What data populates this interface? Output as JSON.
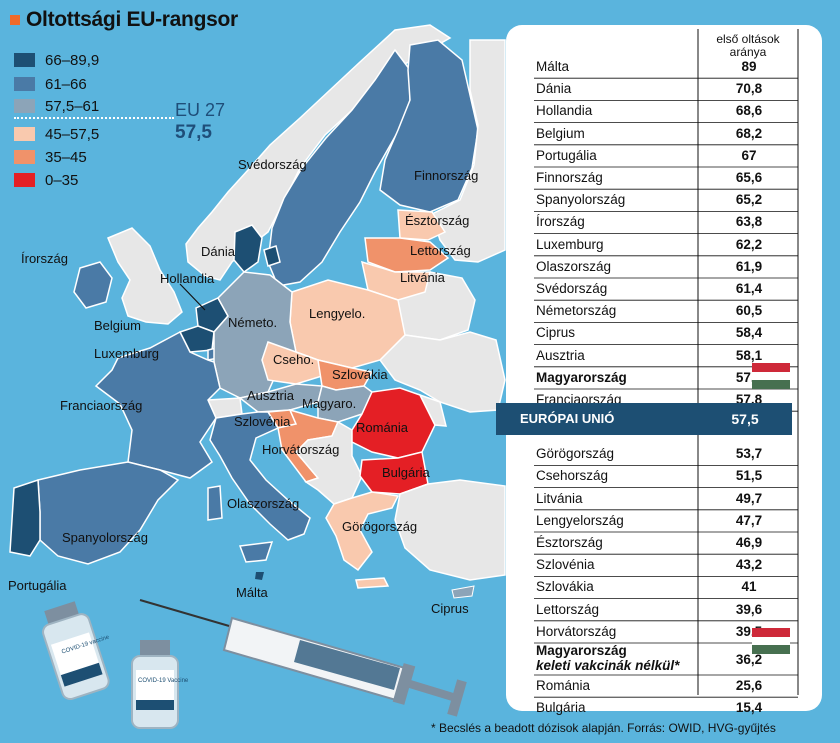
{
  "title": "Oltottsági EU-rangsor",
  "legend": [
    {
      "label": "66–89,9",
      "color": "#1d4f73"
    },
    {
      "label": "61–66",
      "color": "#4a7aa6"
    },
    {
      "label": "57,5–61",
      "color": "#8ca4b8"
    },
    {
      "label": "45–57,5",
      "color": "#f9c9ae"
    },
    {
      "label": "35–45",
      "color": "#f0926a"
    },
    {
      "label": "0–35",
      "color": "#e41f25"
    }
  ],
  "eu_average": {
    "label": "EU 27",
    "value": "57,5"
  },
  "map_labels": {
    "svedorszag": "Svédország",
    "finnorszag": "Finnország",
    "esztorszag": "Észtország",
    "lettorszag": "Lettország",
    "litvania": "Litvánia",
    "irorszag": "Írország",
    "dania": "Dánia",
    "hollandia": "Hollandia",
    "belgium": "Belgium",
    "luxemburg": "Luxemburg",
    "nemeto": "Németo.",
    "lengyelo": "Lengyelo.",
    "cseho": "Cseho.",
    "szlovakia": "Szlovákia",
    "ausztria": "Ausztria",
    "magyaro": "Magyaro.",
    "franciaorszag": "Franciaország",
    "szlovenia": "Szlovénia",
    "romania": "Románia",
    "horvatorszag": "Horvátország",
    "bulgaria": "Bulgária",
    "olaszorszag": "Olaszország",
    "spanyolorszag": "Spanyolország",
    "gorogorszag": "Görögország",
    "portugalia": "Portugália",
    "malta": "Málta",
    "ciprus": "Ciprus"
  },
  "table": {
    "column_header_line1": "első oltások",
    "column_header_line2": "aránya",
    "eu_row": {
      "name": "EURÓPAI UNIÓ",
      "value": "57,5"
    },
    "hu_note_line1": "Magyarország",
    "hu_note_line2": "keleti vakcinák nélkül*",
    "hu_note_value": "36,2"
  },
  "chart_data": {
    "type": "table",
    "title": "Oltottsági EU-rangsor",
    "value_label": "első oltások aránya",
    "rows": [
      {
        "name": "Málta",
        "value": "89"
      },
      {
        "name": "Dánia",
        "value": "70,8"
      },
      {
        "name": "Hollandia",
        "value": "68,6"
      },
      {
        "name": "Belgium",
        "value": "68,2"
      },
      {
        "name": "Portugália",
        "value": "67"
      },
      {
        "name": "Finnország",
        "value": "65,6"
      },
      {
        "name": "Spanyolország",
        "value": "65,2"
      },
      {
        "name": "Írország",
        "value": "63,8"
      },
      {
        "name": "Luxemburg",
        "value": "62,2"
      },
      {
        "name": "Olaszország",
        "value": "61,9"
      },
      {
        "name": "Svédország",
        "value": "61,4"
      },
      {
        "name": "Németország",
        "value": "60,5"
      },
      {
        "name": "Ciprus",
        "value": "58,4"
      },
      {
        "name": "Ausztria",
        "value": "58,1"
      },
      {
        "name": "Magyarország",
        "value": "57,9"
      },
      {
        "name": "Franciaország",
        "value": "57,8"
      },
      {
        "name": "EURÓPAI UNIÓ",
        "value": "57,5"
      },
      {
        "name": "Görögország",
        "value": "53,7"
      },
      {
        "name": "Csehország",
        "value": "51,5"
      },
      {
        "name": "Litvánia",
        "value": "49,7"
      },
      {
        "name": "Lengyelország",
        "value": "47,7"
      },
      {
        "name": "Észtország",
        "value": "46,9"
      },
      {
        "name": "Szlovénia",
        "value": "43,2"
      },
      {
        "name": "Szlovákia",
        "value": "41"
      },
      {
        "name": "Lettország",
        "value": "39,6"
      },
      {
        "name": "Horvátország",
        "value": "39,5"
      },
      {
        "name": "Magyarország keleti vakcinák nélkül*",
        "value": "36,2"
      },
      {
        "name": "Románia",
        "value": "25,6"
      },
      {
        "name": "Bulgária",
        "value": "15,4"
      }
    ]
  },
  "vial_label": "COVID-19 vaccine",
  "vial_label2": "COVID-19 Vaccine",
  "footnote": "* Becslés a beadott dózisok alapján.  Forrás: OWID, HVG-gyűjtés",
  "flag_colors": [
    "#ce2939",
    "#ffffff",
    "#477050"
  ]
}
